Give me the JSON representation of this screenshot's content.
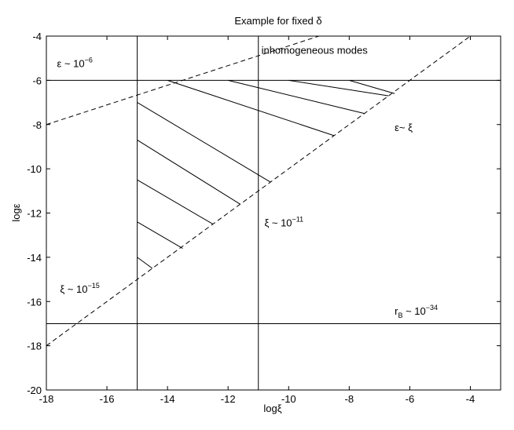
{
  "chart_data": {
    "type": "line",
    "title": "Example for fixed δ",
    "xlabel": "logξ",
    "ylabel": "logε",
    "xlim": [
      -18,
      -3
    ],
    "ylim": [
      -20,
      -4
    ],
    "xticks": [
      -18,
      -16,
      -14,
      -12,
      -10,
      -8,
      -6,
      -4
    ],
    "yticks": [
      -20,
      -18,
      -16,
      -14,
      -12,
      -10,
      -8,
      -6,
      -4
    ],
    "grid": false,
    "frame_color": "#000000",
    "line_color": "#000000",
    "series": [
      {
        "style": "dashed",
        "x": [
          -18,
          -4
        ],
        "y": [
          -18,
          -4
        ]
      },
      {
        "style": "dashed",
        "x": [
          -18,
          -9
        ],
        "y": [
          -8,
          -4
        ]
      }
    ],
    "reference_lines": {
      "horizontal": [
        -6,
        -17
      ],
      "vertical": [
        -15,
        -11
      ]
    },
    "hatch_segments": [
      {
        "x": [
          -15.0,
          -14.5
        ],
        "y": [
          -14.0,
          -14.5
        ]
      },
      {
        "x": [
          -15.0,
          -13.5
        ],
        "y": [
          -12.4,
          -13.6
        ]
      },
      {
        "x": [
          -15.0,
          -12.5
        ],
        "y": [
          -10.5,
          -12.5
        ]
      },
      {
        "x": [
          -15.0,
          -11.6
        ],
        "y": [
          -8.7,
          -11.6
        ]
      },
      {
        "x": [
          -15.0,
          -10.6
        ],
        "y": [
          -7.0,
          -10.6
        ]
      },
      {
        "x": [
          -14.0,
          -8.5
        ],
        "y": [
          -6.0,
          -8.5
        ]
      },
      {
        "x": [
          -12.0,
          -7.5
        ],
        "y": [
          -6.0,
          -7.5
        ]
      },
      {
        "x": [
          -10.0,
          -6.7
        ],
        "y": [
          -6.0,
          -6.7
        ]
      },
      {
        "x": [
          -8.0,
          -6.5
        ],
        "y": [
          -6.0,
          -6.6
        ]
      }
    ],
    "annotations": [
      {
        "id": "eps",
        "base": "ε ~ 10",
        "sup": "−6",
        "x": -17.65,
        "y": -5.4
      },
      {
        "id": "inhom",
        "base": "inhomogeneous modes",
        "x": -10.9,
        "y": -4.8
      },
      {
        "id": "eps-xi",
        "base": "ε~ ξ",
        "x": -6.5,
        "y": -8.3
      },
      {
        "id": "xi11",
        "base": "ξ ~ 10",
        "sup": "−11",
        "x": -10.8,
        "y": -12.6
      },
      {
        "id": "xi15",
        "base": "ξ ~ 10",
        "sup": "−15",
        "x": -17.55,
        "y": -15.6
      },
      {
        "id": "rb",
        "base": "r",
        "sub": "B",
        "tail": " ~ 10",
        "sup": "−34",
        "x": -6.5,
        "y": -16.6
      }
    ]
  }
}
